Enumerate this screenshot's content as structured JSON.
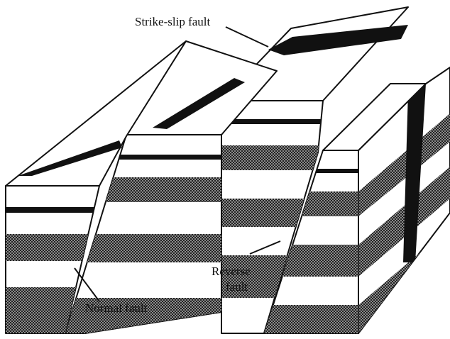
{
  "labels": {
    "strike_slip": "Strike-slip fault",
    "reverse": [
      "Reverse",
      "fault"
    ],
    "normal": "Normal fault"
  }
}
